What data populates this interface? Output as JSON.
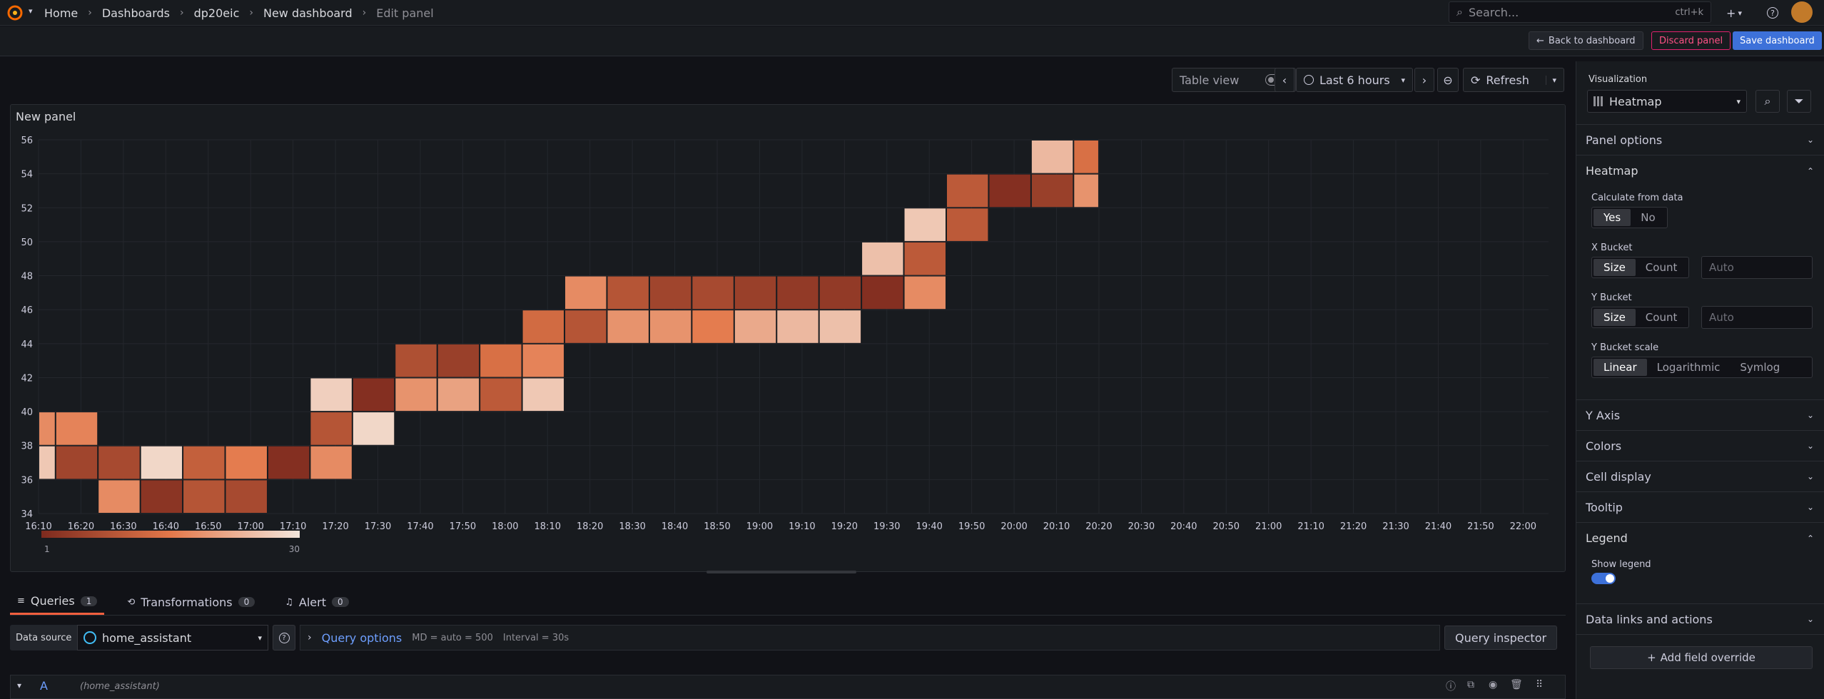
{
  "breadcrumb": {
    "home": "Home",
    "dashboards": "Dashboards",
    "folder": "dp20eic",
    "dashboard": "New dashboard",
    "current": "Edit panel"
  },
  "search": {
    "placeholder": "Search...",
    "shortcut": "ctrl+k"
  },
  "actions": {
    "back": "Back to dashboard",
    "discard": "Discard panel",
    "save": "Save dashboard"
  },
  "panel_toolbar": {
    "table_view": "Table view",
    "time_range": "Last 6 hours",
    "refresh": "Refresh"
  },
  "panel": {
    "title": "New panel"
  },
  "chart_data": {
    "type": "heatmap",
    "x_ticks": [
      "16:10",
      "16:20",
      "16:30",
      "16:40",
      "16:50",
      "17:00",
      "17:10",
      "17:20",
      "17:30",
      "17:40",
      "17:50",
      "18:00",
      "18:10",
      "18:20",
      "18:30",
      "18:40",
      "18:50",
      "19:00",
      "19:10",
      "19:20",
      "19:30",
      "19:40",
      "19:50",
      "20:00",
      "20:10",
      "20:20",
      "20:30",
      "20:40",
      "20:50",
      "21:00",
      "21:10",
      "21:20",
      "21:30",
      "21:40",
      "21:50",
      "22:00"
    ],
    "y_ticks": [
      34,
      36,
      38,
      40,
      42,
      44,
      46,
      48,
      50,
      52,
      54,
      56
    ],
    "ylim": [
      34,
      56
    ],
    "color_scale": {
      "min": 1,
      "max": 30,
      "low": "#7d2a1e",
      "mid": "#e3784a",
      "high": "#f3e6dc"
    },
    "cells": [
      {
        "x0": "16:10",
        "x1": "16:14",
        "y": 38,
        "count": 18
      },
      {
        "x0": "16:10",
        "x1": "16:14",
        "y": 36,
        "count": 26
      },
      {
        "x0": "16:14",
        "x1": "16:24",
        "y": 38,
        "count": 17
      },
      {
        "x0": "16:14",
        "x1": "16:24",
        "y": 36,
        "count": 6
      },
      {
        "x0": "16:24",
        "x1": "16:34",
        "y": 36,
        "count": 7
      },
      {
        "x0": "16:24",
        "x1": "16:34",
        "y": 34,
        "count": 18
      },
      {
        "x0": "16:34",
        "x1": "16:44",
        "y": 36,
        "count": 28
      },
      {
        "x0": "16:34",
        "x1": "16:44",
        "y": 34,
        "count": 3
      },
      {
        "x0": "16:44",
        "x1": "16:54",
        "y": 36,
        "count": 11
      },
      {
        "x0": "16:44",
        "x1": "16:54",
        "y": 34,
        "count": 9
      },
      {
        "x0": "16:54",
        "x1": "17:04",
        "y": 36,
        "count": 16
      },
      {
        "x0": "16:54",
        "x1": "17:04",
        "y": 34,
        "count": 7
      },
      {
        "x0": "17:04",
        "x1": "17:14",
        "y": 36,
        "count": 2
      },
      {
        "x0": "17:14",
        "x1": "17:24",
        "y": 40,
        "count": 27
      },
      {
        "x0": "17:14",
        "x1": "17:24",
        "y": 38,
        "count": 9
      },
      {
        "x0": "17:14",
        "x1": "17:24",
        "y": 36,
        "count": 18
      },
      {
        "x0": "17:24",
        "x1": "17:34",
        "y": 40,
        "count": 2
      },
      {
        "x0": "17:24",
        "x1": "17:34",
        "y": 38,
        "count": 28
      },
      {
        "x0": "17:34",
        "x1": "17:44",
        "y": 42,
        "count": 8
      },
      {
        "x0": "17:34",
        "x1": "17:44",
        "y": 40,
        "count": 19
      },
      {
        "x0": "17:44",
        "x1": "17:54",
        "y": 42,
        "count": 5
      },
      {
        "x0": "17:44",
        "x1": "17:54",
        "y": 40,
        "count": 21
      },
      {
        "x0": "17:54",
        "x1": "18:04",
        "y": 42,
        "count": 14
      },
      {
        "x0": "17:54",
        "x1": "18:04",
        "y": 40,
        "count": 10
      },
      {
        "x0": "18:04",
        "x1": "18:14",
        "y": 44,
        "count": 13
      },
      {
        "x0": "18:04",
        "x1": "18:14",
        "y": 42,
        "count": 17
      },
      {
        "x0": "18:04",
        "x1": "18:14",
        "y": 40,
        "count": 26
      },
      {
        "x0": "18:14",
        "x1": "18:24",
        "y": 46,
        "count": 18
      },
      {
        "x0": "18:14",
        "x1": "18:24",
        "y": 44,
        "count": 9
      },
      {
        "x0": "18:24",
        "x1": "18:34",
        "y": 46,
        "count": 9
      },
      {
        "x0": "18:24",
        "x1": "18:34",
        "y": 44,
        "count": 19
      },
      {
        "x0": "18:34",
        "x1": "18:44",
        "y": 46,
        "count": 6
      },
      {
        "x0": "18:34",
        "x1": "18:44",
        "y": 44,
        "count": 19
      },
      {
        "x0": "18:44",
        "x1": "18:54",
        "y": 46,
        "count": 7
      },
      {
        "x0": "18:44",
        "x1": "18:54",
        "y": 44,
        "count": 16
      },
      {
        "x0": "18:54",
        "x1": "19:04",
        "y": 46,
        "count": 5
      },
      {
        "x0": "18:54",
        "x1": "19:04",
        "y": 44,
        "count": 22
      },
      {
        "x0": "19:04",
        "x1": "19:14",
        "y": 46,
        "count": 4
      },
      {
        "x0": "19:04",
        "x1": "19:14",
        "y": 44,
        "count": 24
      },
      {
        "x0": "19:14",
        "x1": "19:24",
        "y": 46,
        "count": 4
      },
      {
        "x0": "19:14",
        "x1": "19:24",
        "y": 44,
        "count": 25
      },
      {
        "x0": "19:24",
        "x1": "19:34",
        "y": 48,
        "count": 25
      },
      {
        "x0": "19:24",
        "x1": "19:34",
        "y": 46,
        "count": 2
      },
      {
        "x0": "19:34",
        "x1": "19:44",
        "y": 50,
        "count": 26
      },
      {
        "x0": "19:34",
        "x1": "19:44",
        "y": 48,
        "count": 10
      },
      {
        "x0": "19:34",
        "x1": "19:44",
        "y": 46,
        "count": 18
      },
      {
        "x0": "19:44",
        "x1": "19:54",
        "y": 52,
        "count": 10
      },
      {
        "x0": "19:44",
        "x1": "19:54",
        "y": 50,
        "count": 10
      },
      {
        "x0": "19:54",
        "x1": "20:04",
        "y": 52,
        "count": 2
      },
      {
        "x0": "20:04",
        "x1": "20:14",
        "y": 52,
        "count": 5
      },
      {
        "x0": "20:04",
        "x1": "20:14",
        "y": 54,
        "count": 24
      },
      {
        "x0": "20:14",
        "x1": "20:20",
        "y": 54,
        "count": 14
      },
      {
        "x0": "20:14",
        "x1": "20:20",
        "y": 52,
        "count": 19
      }
    ],
    "legend": {
      "min_label": "1",
      "max_label": "30"
    }
  },
  "query_tabs": [
    {
      "label": "Queries",
      "count": "1"
    },
    {
      "label": "Transformations",
      "count": "0"
    },
    {
      "label": "Alert",
      "count": "0"
    }
  ],
  "query_bar": {
    "datasource_label": "Data source",
    "datasource": "home_assistant",
    "query_options": "Query options",
    "md": "MD = auto = 500",
    "interval": "Interval = 30s",
    "inspector": "Query inspector"
  },
  "query_row": {
    "ref": "A",
    "source": "(home_assistant)"
  },
  "options": {
    "visualization_label": "Visualization",
    "visualization": "Heatmap",
    "panel_options": "Panel options",
    "heatmap": "Heatmap",
    "calc_label": "Calculate from data",
    "calc_yes": "Yes",
    "calc_no": "No",
    "xbucket_label": "X Bucket",
    "ybucket_label": "Y Bucket",
    "size": "Size",
    "count": "Count",
    "auto_placeholder": "Auto",
    "yscale_label": "Y Bucket scale",
    "linear": "Linear",
    "log": "Logarithmic",
    "symlog": "Symlog",
    "y_axis": "Y Axis",
    "colors": "Colors",
    "cell_display": "Cell display",
    "tooltip": "Tooltip",
    "legend": "Legend",
    "show_legend": "Show legend",
    "data_links": "Data links and actions",
    "add_override": "Add field override"
  }
}
